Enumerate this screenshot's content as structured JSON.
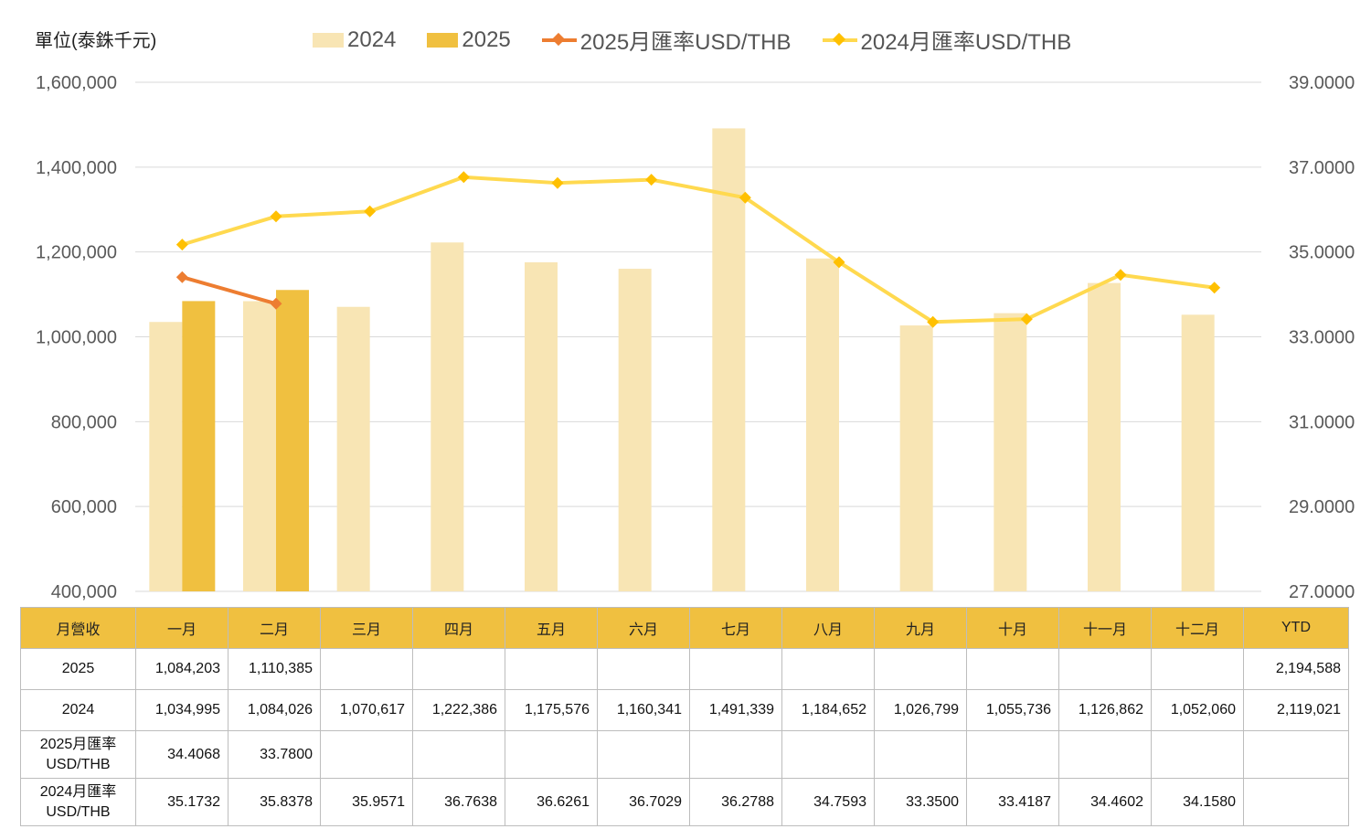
{
  "unit_label": "單位(泰銖千元)",
  "legend": {
    "items": [
      {
        "label": "2024",
        "kind": "bar",
        "color": "#f8e5b4"
      },
      {
        "label": "2025",
        "kind": "bar",
        "color": "#f0c040"
      },
      {
        "label": "2025月匯率USD/THB",
        "kind": "line",
        "color": "#ed7d31"
      },
      {
        "label": "2024月匯率USD/THB",
        "kind": "line",
        "color": "#ffd94f",
        "marker_color": "#ffc000"
      }
    ]
  },
  "chart_data": {
    "type": "bar",
    "categories": [
      "一月",
      "二月",
      "三月",
      "四月",
      "五月",
      "六月",
      "七月",
      "八月",
      "九月",
      "十月",
      "十一月",
      "十二月"
    ],
    "series": [
      {
        "name": "2024",
        "type": "bar",
        "axis": "left",
        "color": "#f8e5b4",
        "values": [
          1034995,
          1084026,
          1070617,
          1222386,
          1175576,
          1160341,
          1491339,
          1184652,
          1026799,
          1055736,
          1126862,
          1052060
        ]
      },
      {
        "name": "2025",
        "type": "bar",
        "axis": "left",
        "color": "#f0c040",
        "values": [
          1084203,
          1110385,
          null,
          null,
          null,
          null,
          null,
          null,
          null,
          null,
          null,
          null
        ]
      },
      {
        "name": "2025月匯率USD/THB",
        "type": "line",
        "axis": "right",
        "color": "#ed7d31",
        "values": [
          34.4068,
          33.78,
          null,
          null,
          null,
          null,
          null,
          null,
          null,
          null,
          null,
          null
        ]
      },
      {
        "name": "2024月匯率USD/THB",
        "type": "line",
        "axis": "right",
        "color": "#ffd94f",
        "values": [
          35.1732,
          35.8378,
          35.9571,
          36.7638,
          36.6261,
          36.7029,
          36.2788,
          34.7593,
          33.35,
          33.4187,
          34.4602,
          34.158
        ]
      }
    ],
    "ylim": [
      400000,
      1600000
    ],
    "yticks": [
      "400,000",
      "600,000",
      "800,000",
      "1,000,000",
      "1,200,000",
      "1,400,000",
      "1,600,000"
    ],
    "y2lim": [
      27,
      39
    ],
    "y2ticks": [
      "27.0000",
      "29.0000",
      "31.0000",
      "33.0000",
      "35.0000",
      "37.0000",
      "39.0000"
    ],
    "grid": true,
    "legend_position": "top"
  },
  "table": {
    "header": [
      "月營收",
      "一月",
      "二月",
      "三月",
      "四月",
      "五月",
      "六月",
      "七月",
      "八月",
      "九月",
      "十月",
      "十一月",
      "十二月",
      "YTD"
    ],
    "rows": [
      {
        "label": "2025",
        "cells": [
          "1,084,203",
          "1,110,385",
          "",
          "",
          "",
          "",
          "",
          "",
          "",
          "",
          "",
          "",
          "2,194,588"
        ]
      },
      {
        "label": "2024",
        "cells": [
          "1,034,995",
          "1,084,026",
          "1,070,617",
          "1,222,386",
          "1,175,576",
          "1,160,341",
          "1,491,339",
          "1,184,652",
          "1,026,799",
          "1,055,736",
          "1,126,862",
          "1,052,060",
          "2,119,021"
        ]
      },
      {
        "label": "2025月匯率USD/THB",
        "cells": [
          "34.4068",
          "33.7800",
          "",
          "",
          "",
          "",
          "",
          "",
          "",
          "",
          "",
          "",
          ""
        ]
      },
      {
        "label": "2024月匯率USD/THB",
        "cells": [
          "35.1732",
          "35.8378",
          "35.9571",
          "36.7638",
          "36.6261",
          "36.7029",
          "36.2788",
          "34.7593",
          "33.3500",
          "33.4187",
          "34.4602",
          "34.1580",
          ""
        ]
      }
    ]
  }
}
